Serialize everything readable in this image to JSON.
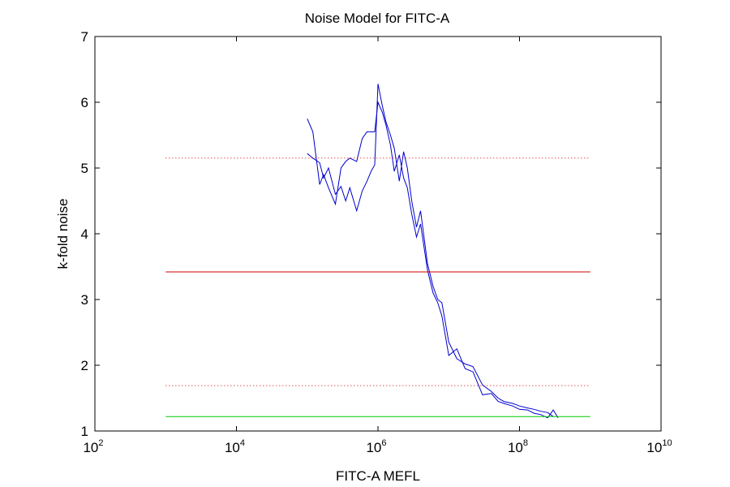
{
  "chart_data": {
    "type": "line",
    "title": "Noise Model for FITC-A",
    "xlabel": "FITC-A MEFL",
    "ylabel": "k-fold noise",
    "xscale": "log",
    "xlim": [
      100,
      10000000000
    ],
    "ylim": [
      1,
      7
    ],
    "x_ticks": [
      {
        "base": "10",
        "exp": "2",
        "value": 100
      },
      {
        "base": "10",
        "exp": "4",
        "value": 10000
      },
      {
        "base": "10",
        "exp": "6",
        "value": 1000000
      },
      {
        "base": "10",
        "exp": "8",
        "value": 100000000
      },
      {
        "base": "10",
        "exp": "10",
        "value": 10000000000
      }
    ],
    "y_ticks": [
      1,
      2,
      3,
      4,
      5,
      6,
      7
    ],
    "grid": false,
    "series": [
      {
        "color": "#0000cc",
        "style": "solid",
        "x": [
          100000,
          120000,
          150000,
          170000,
          200000,
          250000,
          300000,
          350000,
          400000,
          500000,
          600000,
          700000,
          800000,
          900000,
          1000000,
          1150000,
          1300000,
          1500000,
          1700000,
          2000000,
          2300000,
          2600000,
          3000000,
          3500000,
          4000000,
          5000000,
          6000000,
          7000000,
          8000000,
          10000000,
          13000000,
          17000000,
          22000000,
          30000000,
          40000000,
          50000000,
          60000000,
          80000000,
          100000000,
          130000000,
          160000000,
          200000000,
          250000000,
          300000000
        ],
        "y": [
          5.22,
          5.15,
          5.08,
          4.85,
          5.0,
          4.6,
          4.72,
          4.5,
          4.7,
          4.35,
          4.65,
          4.8,
          4.95,
          5.05,
          6.28,
          5.95,
          5.7,
          5.5,
          5.3,
          4.8,
          5.25,
          5.0,
          4.5,
          4.1,
          4.35,
          3.55,
          3.2,
          3.0,
          2.95,
          2.35,
          2.1,
          2.02,
          1.98,
          1.7,
          1.6,
          1.5,
          1.45,
          1.42,
          1.38,
          1.35,
          1.33,
          1.3,
          1.28,
          1.22
        ]
      },
      {
        "color": "#0000cc",
        "style": "solid",
        "x": [
          100000,
          120000,
          150000,
          170000,
          200000,
          250000,
          300000,
          350000,
          400000,
          500000,
          600000,
          700000,
          800000,
          900000,
          1000000,
          1150000,
          1300000,
          1500000,
          1700000,
          2000000,
          2300000,
          2600000,
          3000000,
          3500000,
          4000000,
          5000000,
          6000000,
          7000000,
          8000000,
          10000000,
          13000000,
          17000000,
          22000000,
          30000000,
          40000000,
          50000000,
          60000000,
          80000000,
          100000000,
          130000000,
          160000000,
          200000000,
          250000000,
          300000000,
          350000000
        ],
        "y": [
          5.75,
          5.55,
          4.75,
          4.9,
          4.7,
          4.45,
          5.0,
          5.1,
          5.15,
          5.1,
          5.45,
          5.55,
          5.55,
          5.55,
          6.0,
          5.85,
          5.65,
          5.35,
          4.95,
          5.2,
          4.85,
          4.7,
          4.3,
          3.95,
          4.15,
          3.45,
          3.1,
          2.95,
          2.75,
          2.15,
          2.25,
          1.95,
          1.9,
          1.55,
          1.57,
          1.45,
          1.42,
          1.38,
          1.33,
          1.32,
          1.27,
          1.25,
          1.2,
          1.32,
          1.2
        ]
      },
      {
        "color": "#cc0000",
        "style": "solid",
        "x": [
          1000,
          1000000000
        ],
        "y": [
          3.42,
          3.42
        ]
      },
      {
        "color": "#dd0000",
        "style": "dotted",
        "x": [
          1000,
          1000000000
        ],
        "y": [
          5.15,
          5.15
        ]
      },
      {
        "color": "#dd0000",
        "style": "dotted",
        "x": [
          1000,
          1000000000
        ],
        "y": [
          1.69,
          1.69
        ]
      },
      {
        "color": "#00cc00",
        "style": "solid",
        "x": [
          1000,
          1000000000
        ],
        "y": [
          1.22,
          1.22
        ]
      }
    ]
  }
}
